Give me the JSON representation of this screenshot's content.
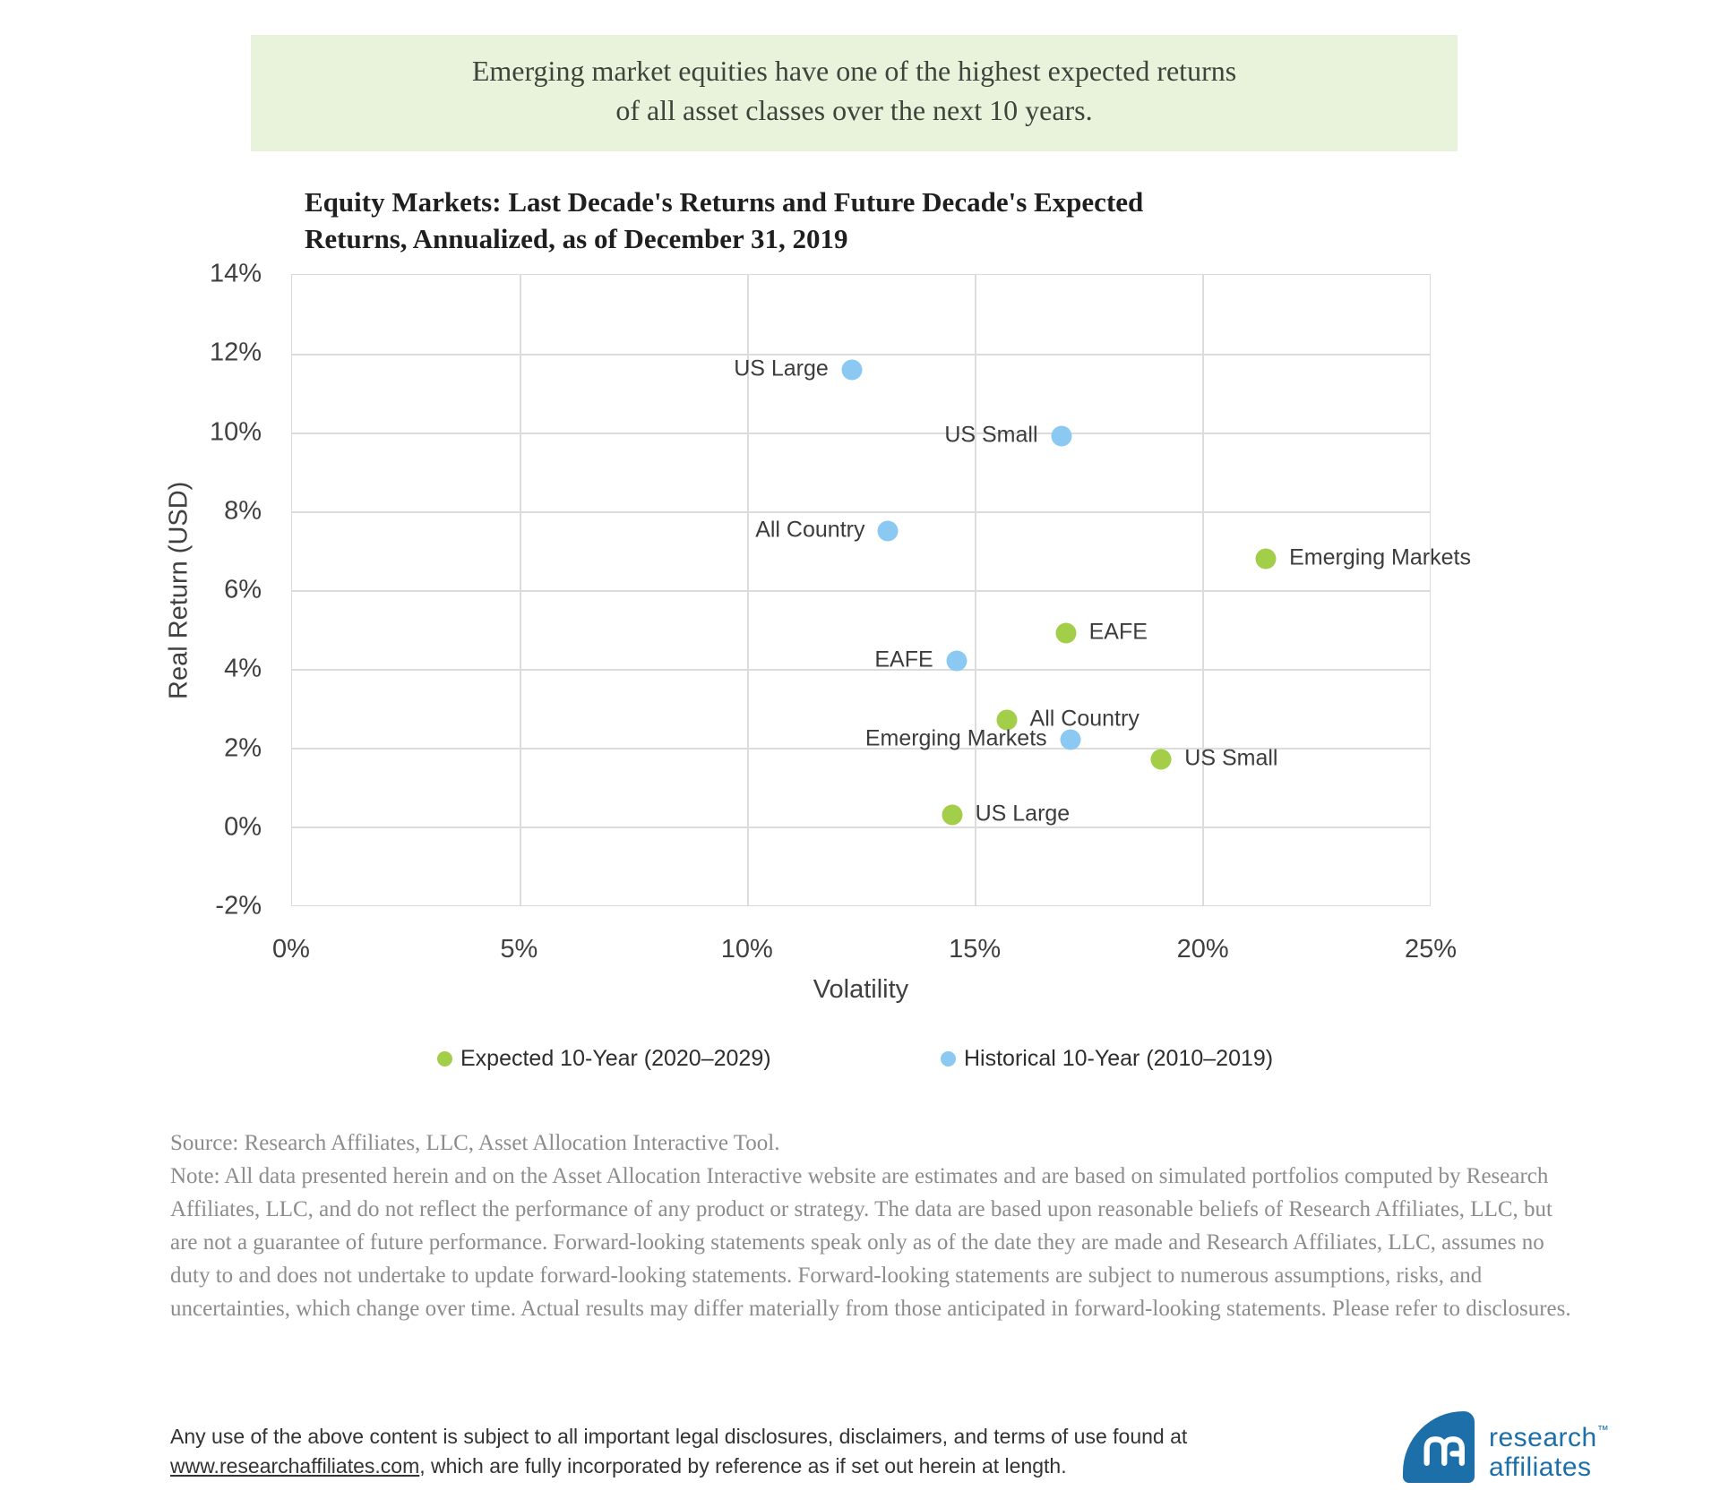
{
  "banner": {
    "line1": "Emerging market equities have one of the highest expected returns",
    "line2": "of all asset classes over the next 10 years.",
    "bg_color": "#E9F3DB"
  },
  "chart": {
    "title_line1": "Equity Markets: Last Decade's Returns and Future Decade's Expected",
    "title_line2": "Returns, Annualized, as of December 31, 2019"
  },
  "chart_data": {
    "type": "scatter",
    "title": "Equity Markets: Last Decade's Returns and Future Decade's Expected Returns, Annualized, as of December 31, 2019",
    "xlabel": "Volatility",
    "ylabel": "Real Return (USD)",
    "xlim": [
      0,
      25
    ],
    "ylim": [
      -2,
      14
    ],
    "grid": true,
    "legend_position": "bottom",
    "x_ticks": {
      "values": [
        0,
        5,
        10,
        15,
        20,
        25
      ],
      "labels": [
        "0%",
        "5%",
        "10%",
        "15%",
        "20%",
        "25%"
      ]
    },
    "y_ticks": {
      "values": [
        14,
        12,
        10,
        8,
        6,
        4,
        2,
        0,
        -2
      ],
      "labels": [
        "14%",
        "12%",
        "10%",
        "8%",
        "6%",
        "4%",
        "2%",
        "0%",
        "-2%"
      ]
    },
    "series": [
      {
        "name": "Expected 10-Year (2020–2029)",
        "color": "#A2CE4A",
        "label_side": "right",
        "points": [
          {
            "label": "Emerging Markets",
            "vol": 21.4,
            "ret": 6.8
          },
          {
            "label": "EAFE",
            "vol": 17.0,
            "ret": 4.9
          },
          {
            "label": "All Country",
            "vol": 15.7,
            "ret": 2.7
          },
          {
            "label": "US Small",
            "vol": 19.1,
            "ret": 1.7
          },
          {
            "label": "US Large",
            "vol": 14.5,
            "ret": 0.3
          }
        ]
      },
      {
        "name": "Historical 10-Year (2010–2019)",
        "color": "#8BC9F2",
        "label_side": "left",
        "points": [
          {
            "label": "US Large",
            "vol": 12.3,
            "ret": 11.6
          },
          {
            "label": "US Small",
            "vol": 16.9,
            "ret": 9.9
          },
          {
            "label": "All Country",
            "vol": 13.1,
            "ret": 7.5
          },
          {
            "label": "EAFE",
            "vol": 14.6,
            "ret": 4.2
          },
          {
            "label": "Emerging Markets",
            "vol": 17.1,
            "ret": 2.2
          }
        ]
      }
    ]
  },
  "notes": {
    "source": "Source: Research Affiliates, LLC, Asset Allocation Interactive Tool.",
    "note": "Note: All data presented herein and on the Asset Allocation Interactive website are estimates and are based on simulated portfolios computed by Research Affiliates, LLC, and do not reflect the performance of any product or strategy. The data are based upon reasonable beliefs of Research Affiliates, LLC, but are not a guarantee of future performance. Forward-looking statements speak only as of the date they are made and Research Affiliates, LLC, assumes no duty to and does not undertake to update forward-looking statements. Forward-looking statements are subject to numerous assumptions, risks, and uncertainties, which change over time. Actual results may differ materially from those anticipated in forward-looking statements. Please refer to disclosures.",
    "text_color": "#8C8C8C"
  },
  "footer": {
    "text_before_link": "Any use of the above content is subject to all important legal disclosures, disclaimers, and terms of use found at",
    "link": "www.researchaffiliates.com",
    "text_after_link": ", which are fully incorporated by reference as if set out herein at length.",
    "logo_line1": "research",
    "logo_line2": "affiliates",
    "logo_tm": "™",
    "logo_color": "#1C6FA8"
  }
}
